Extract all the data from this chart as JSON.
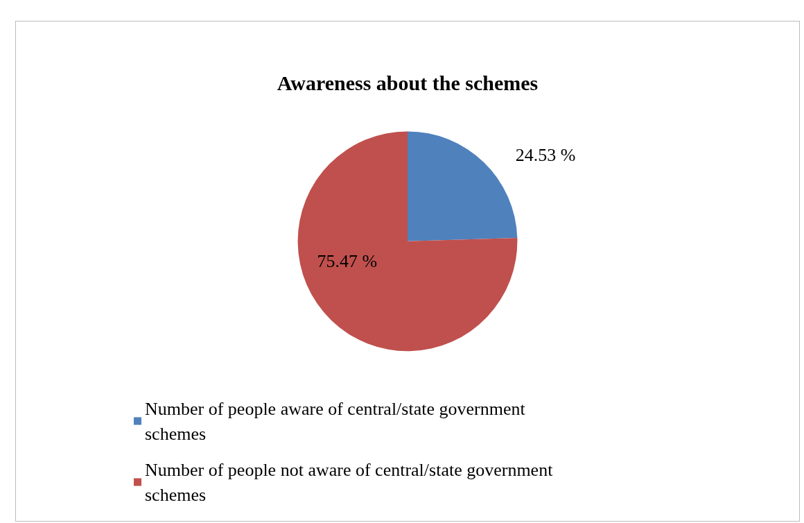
{
  "chart_data": {
    "type": "pie",
    "title": "Awareness about the schemes",
    "categories": [
      "Number of people aware of central/state government schemes",
      "Number of people not aware of central/state government schemes"
    ],
    "values": [
      24.53,
      75.47
    ],
    "colors": [
      "#4f81bd",
      "#c0504d"
    ],
    "value_labels": [
      "24.53 %",
      "75.47 %"
    ],
    "legend": "bottom"
  }
}
